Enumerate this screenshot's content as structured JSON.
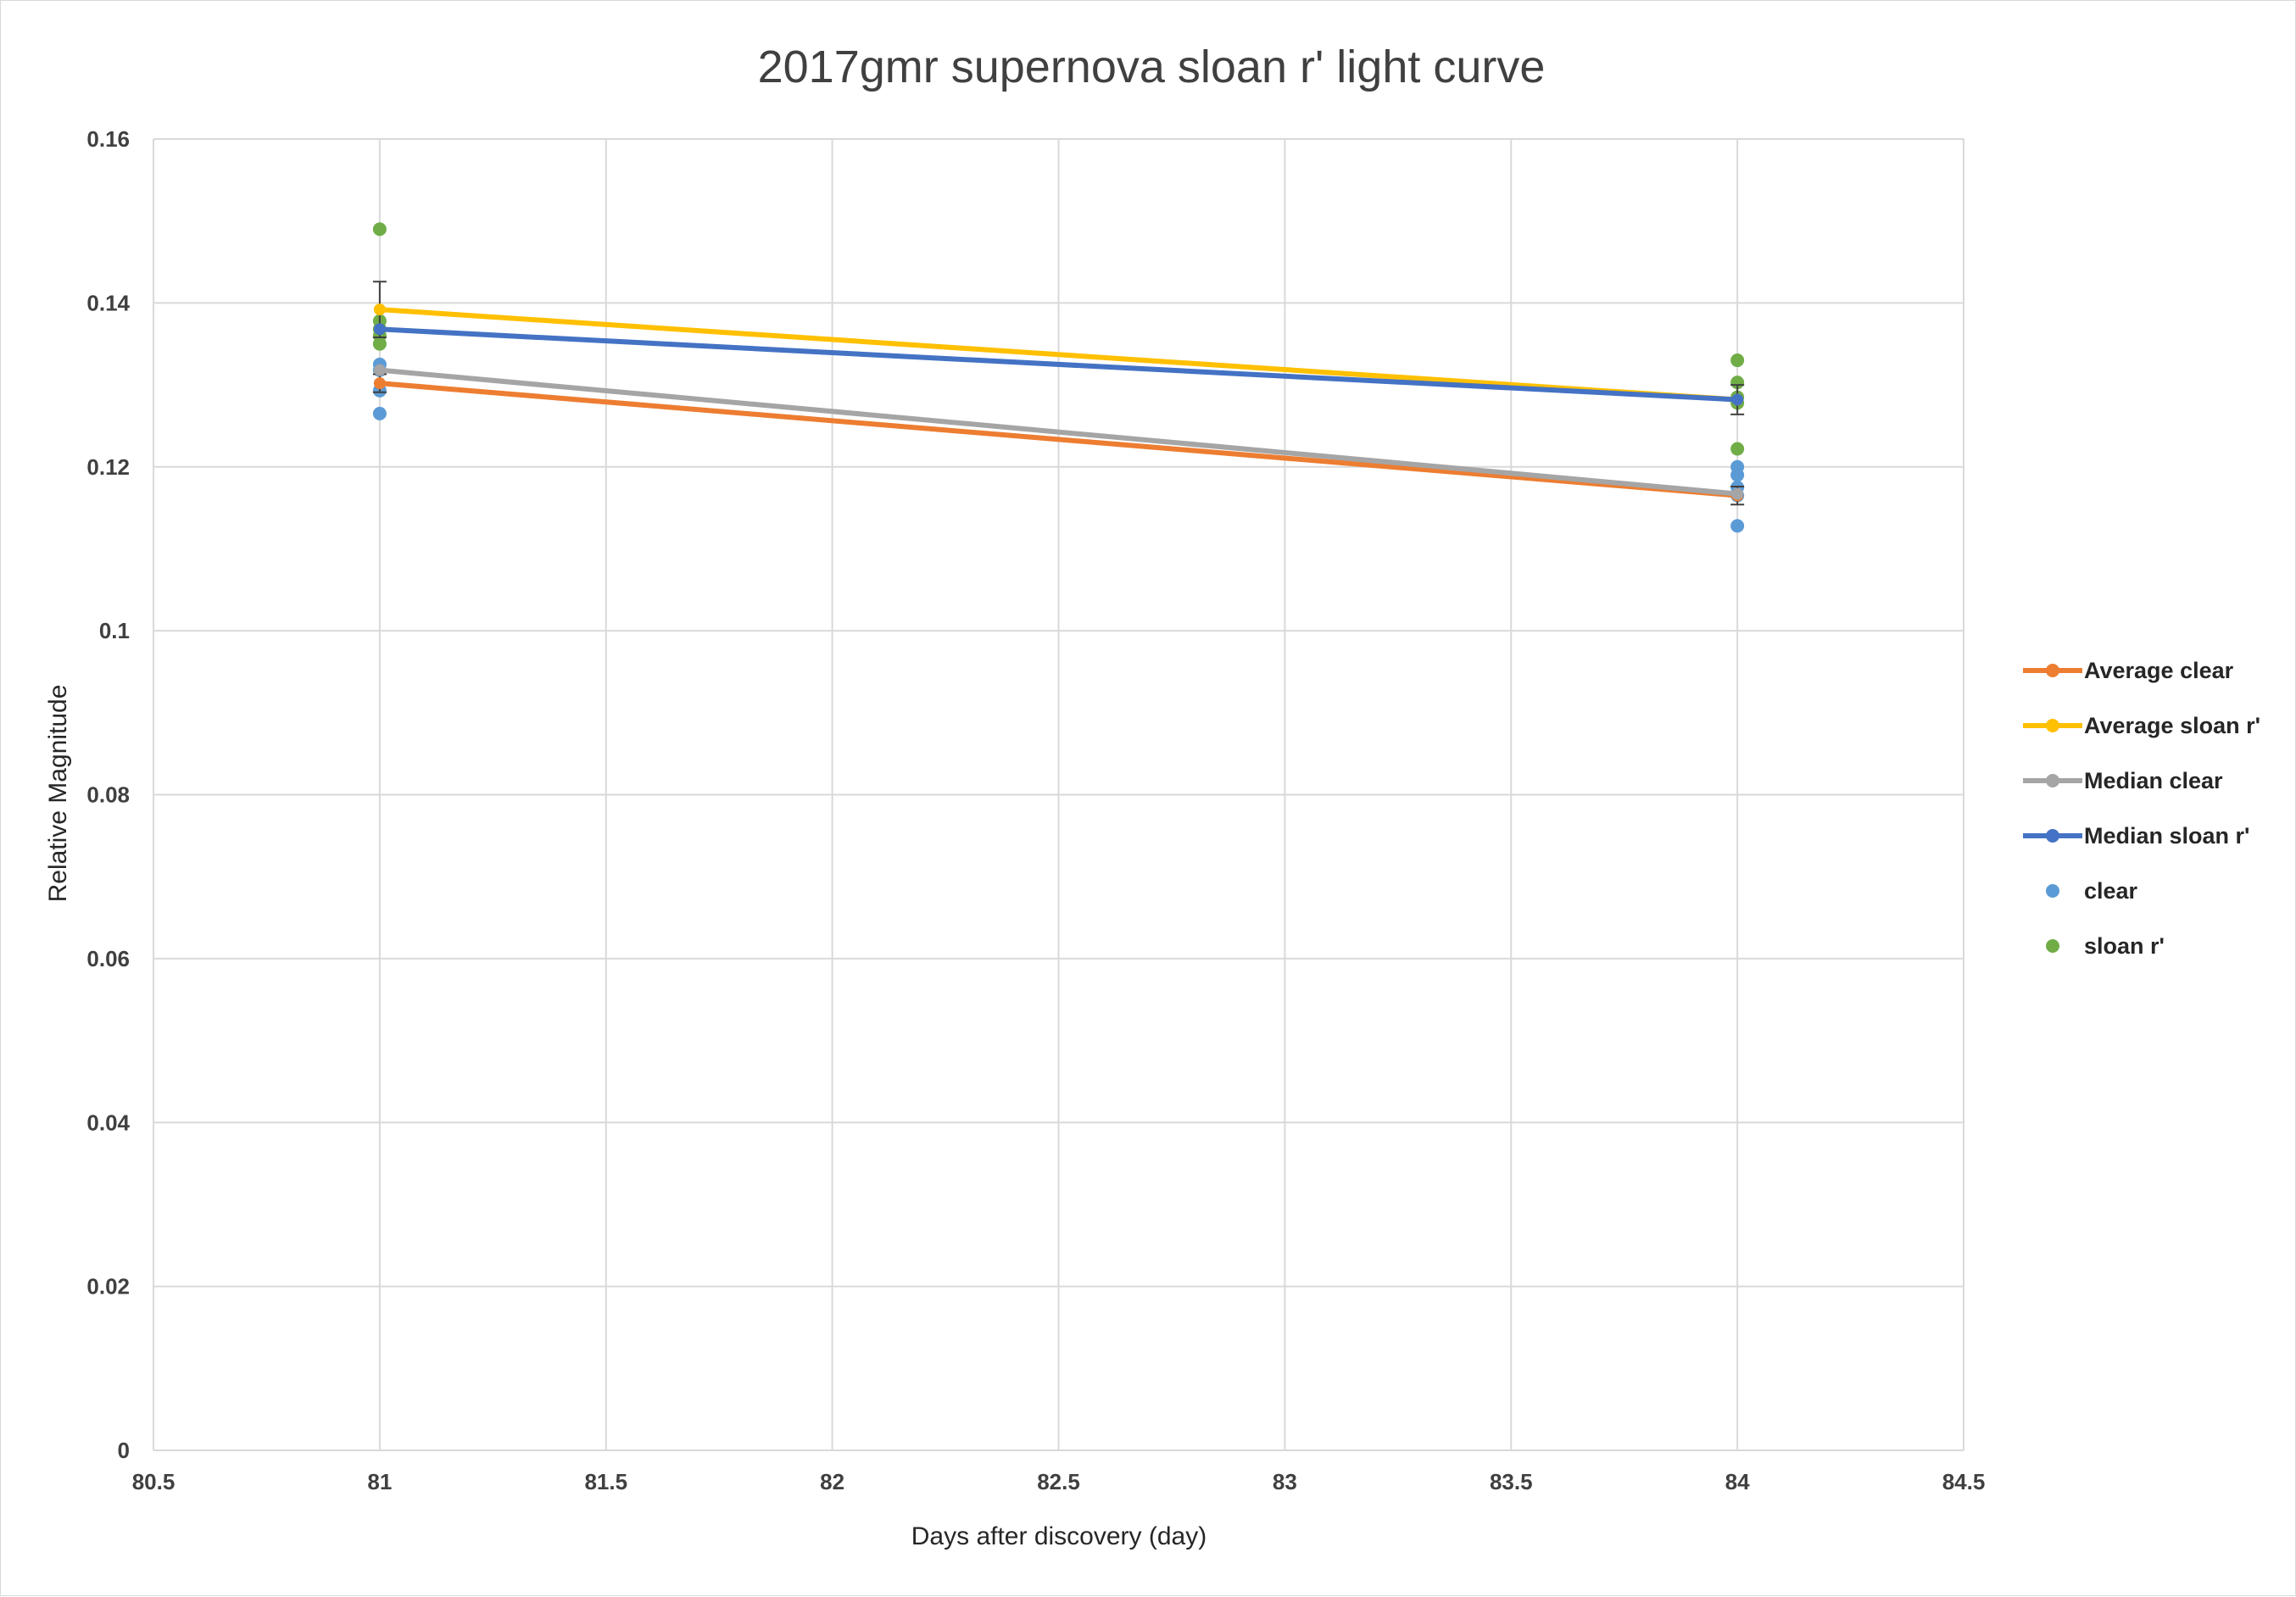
{
  "chart_data": {
    "type": "scatter",
    "title": "2017gmr supernova sloan r' light curve",
    "xlabel": "Days after discovery (day)",
    "ylabel": "Relative Magnitude",
    "xlim": [
      80.5,
      84.5
    ],
    "ylim": [
      0,
      0.16
    ],
    "x_ticks": [
      80.5,
      81,
      81.5,
      82,
      82.5,
      83,
      83.5,
      84,
      84.5
    ],
    "y_ticks": [
      0,
      0.02,
      0.04,
      0.06,
      0.08,
      0.1,
      0.12,
      0.14,
      0.16
    ],
    "x_tick_labels": [
      "80.5",
      "81",
      "81.5",
      "82",
      "82.5",
      "83",
      "83.5",
      "84",
      "84.5"
    ],
    "y_tick_labels": [
      "0",
      "0.02",
      "0.04",
      "0.06",
      "0.08",
      "0.1",
      "0.12",
      "0.14",
      "0.16"
    ],
    "grid": true,
    "legend_position": "right",
    "series": [
      {
        "name": "Average clear",
        "kind": "line",
        "color": "#ed7d31",
        "x": [
          81,
          84
        ],
        "y": [
          0.1302,
          0.1165
        ],
        "error": [
          0.0011,
          0.0011
        ]
      },
      {
        "name": "Average sloan r'",
        "kind": "line",
        "color": "#ffc000",
        "x": [
          81,
          84
        ],
        "y": [
          0.1392,
          0.1282
        ],
        "error": [
          0.0034,
          0.0018
        ]
      },
      {
        "name": "Median clear",
        "kind": "line",
        "color": "#a5a5a5",
        "x": [
          81,
          84
        ],
        "y": [
          0.1318,
          0.1167
        ],
        "error": [
          0,
          0
        ]
      },
      {
        "name": "Median sloan r'",
        "kind": "line",
        "color": "#4472c4",
        "x": [
          81,
          84
        ],
        "y": [
          0.1368,
          0.1282
        ],
        "error": [
          0,
          0
        ]
      },
      {
        "name": "clear",
        "kind": "scatter",
        "color": "#5b9bd5",
        "x": [
          81,
          81,
          81,
          81,
          84,
          84,
          84,
          84,
          84
        ],
        "y": [
          0.1325,
          0.1318,
          0.1293,
          0.1265,
          0.12,
          0.119,
          0.1175,
          0.1165,
          0.1128
        ]
      },
      {
        "name": "sloan r'",
        "kind": "scatter",
        "color": "#70ad47",
        "x": [
          81,
          81,
          81,
          81,
          81,
          84,
          84,
          84,
          84,
          84
        ],
        "y": [
          0.149,
          0.1378,
          0.1368,
          0.136,
          0.135,
          0.133,
          0.1303,
          0.1285,
          0.1278,
          0.1222
        ]
      }
    ]
  }
}
